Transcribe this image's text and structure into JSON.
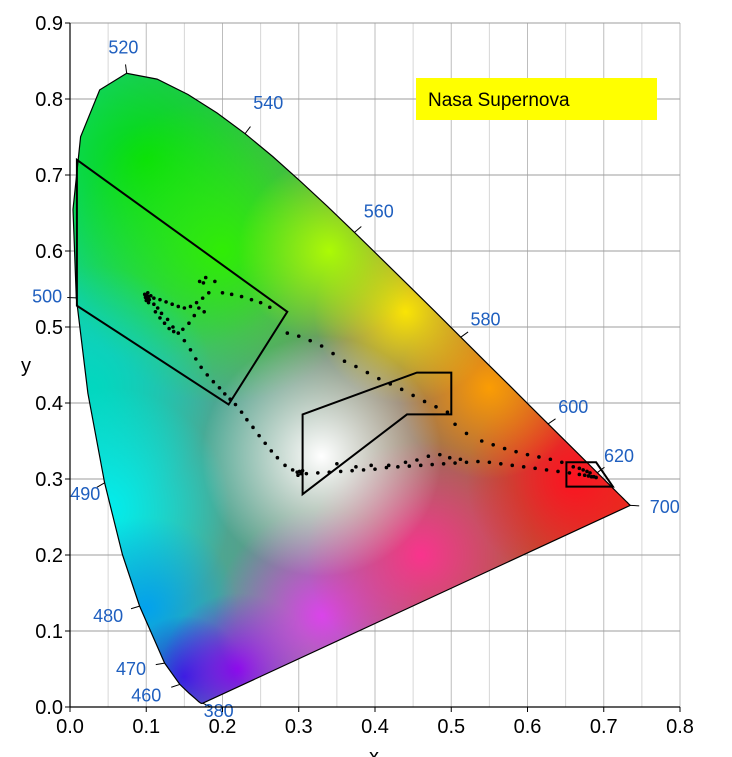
{
  "chart_data": {
    "type": "scatter",
    "title": "Nasa Supernova",
    "title_background": "#ffff00",
    "title_position": "top-right",
    "xlabel": "x",
    "ylabel": "y",
    "xlim": [
      0,
      0.8
    ],
    "ylim": [
      0,
      0.9
    ],
    "xticks": [
      "0.0",
      "0.1",
      "0.2",
      "0.3",
      "0.4",
      "0.5",
      "0.6",
      "0.7",
      "0.8"
    ],
    "yticks": [
      "0.0",
      "0.1",
      "0.2",
      "0.3",
      "0.4",
      "0.5",
      "0.6",
      "0.7",
      "0.8",
      "0.9"
    ],
    "grid": true,
    "wavelength_label_color": "#1f5fbf",
    "spectral_locus": [
      [
        0.1741,
        0.005
      ],
      [
        0.1733,
        0.0048
      ],
      [
        0.1726,
        0.0048
      ],
      [
        0.1714,
        0.0051
      ],
      [
        0.1689,
        0.0069
      ],
      [
        0.1644,
        0.0109
      ],
      [
        0.1566,
        0.0177
      ],
      [
        0.144,
        0.0297
      ],
      [
        0.1241,
        0.0578
      ],
      [
        0.0913,
        0.1327
      ],
      [
        0.0687,
        0.2007
      ],
      [
        0.0454,
        0.295
      ],
      [
        0.0235,
        0.4127
      ],
      [
        0.0082,
        0.5384
      ],
      [
        0.0039,
        0.6548
      ],
      [
        0.0139,
        0.7502
      ],
      [
        0.0389,
        0.812
      ],
      [
        0.0743,
        0.8338
      ],
      [
        0.1142,
        0.8262
      ],
      [
        0.1547,
        0.8059
      ],
      [
        0.1929,
        0.7816
      ],
      [
        0.2296,
        0.7543
      ],
      [
        0.2658,
        0.7243
      ],
      [
        0.3016,
        0.6923
      ],
      [
        0.3373,
        0.6589
      ],
      [
        0.3731,
        0.6245
      ],
      [
        0.4087,
        0.5896
      ],
      [
        0.4441,
        0.5547
      ],
      [
        0.4788,
        0.5202
      ],
      [
        0.5125,
        0.4866
      ],
      [
        0.5448,
        0.4544
      ],
      [
        0.5752,
        0.4242
      ],
      [
        0.6029,
        0.3965
      ],
      [
        0.627,
        0.3725
      ],
      [
        0.6482,
        0.3514
      ],
      [
        0.6658,
        0.334
      ],
      [
        0.6801,
        0.3197
      ],
      [
        0.6915,
        0.3083
      ],
      [
        0.7006,
        0.2993
      ],
      [
        0.7079,
        0.292
      ],
      [
        0.714,
        0.2859
      ],
      [
        0.719,
        0.2809
      ],
      [
        0.723,
        0.277
      ],
      [
        0.726,
        0.274
      ],
      [
        0.7283,
        0.2717
      ],
      [
        0.73,
        0.27
      ],
      [
        0.7311,
        0.2689
      ],
      [
        0.732,
        0.268
      ],
      [
        0.7327,
        0.2673
      ],
      [
        0.7334,
        0.2666
      ],
      [
        0.734,
        0.266
      ],
      [
        0.7344,
        0.2656
      ],
      [
        0.7347,
        0.2653
      ]
    ],
    "wavelength_labels": [
      {
        "label": "380",
        "x": 0.1741,
        "y": 0.005,
        "tx": 0.195,
        "ty": -0.005
      },
      {
        "label": "460",
        "x": 0.144,
        "y": 0.0297,
        "tx": 0.1,
        "ty": 0.015
      },
      {
        "label": "470",
        "x": 0.1241,
        "y": 0.0578,
        "tx": 0.08,
        "ty": 0.05
      },
      {
        "label": "480",
        "x": 0.0913,
        "y": 0.1327,
        "tx": 0.05,
        "ty": 0.12
      },
      {
        "label": "490",
        "x": 0.0454,
        "y": 0.295,
        "tx": 0.02,
        "ty": 0.28
      },
      {
        "label": "500",
        "x": 0.0082,
        "y": 0.5384,
        "tx": -0.03,
        "ty": 0.54
      },
      {
        "label": "520",
        "x": 0.0743,
        "y": 0.8338,
        "tx": 0.07,
        "ty": 0.868
      },
      {
        "label": "540",
        "x": 0.2296,
        "y": 0.7543,
        "tx": 0.26,
        "ty": 0.795
      },
      {
        "label": "560",
        "x": 0.3731,
        "y": 0.6245,
        "tx": 0.405,
        "ty": 0.652
      },
      {
        "label": "580",
        "x": 0.5125,
        "y": 0.4866,
        "tx": 0.545,
        "ty": 0.51
      },
      {
        "label": "600",
        "x": 0.627,
        "y": 0.3725,
        "tx": 0.66,
        "ty": 0.395
      },
      {
        "label": "620",
        "x": 0.6915,
        "y": 0.3083,
        "tx": 0.72,
        "ty": 0.33
      },
      {
        "label": "700",
        "x": 0.7347,
        "y": 0.2653,
        "tx": 0.78,
        "ty": 0.263
      }
    ],
    "regions": [
      {
        "name": "green",
        "points": [
          [
            0.009,
            0.72
          ],
          [
            0.285,
            0.52
          ],
          [
            0.208,
            0.398
          ],
          [
            0.009,
            0.528
          ]
        ]
      },
      {
        "name": "yellow",
        "points": [
          [
            0.305,
            0.385
          ],
          [
            0.455,
            0.44
          ],
          [
            0.5,
            0.44
          ],
          [
            0.5,
            0.385
          ],
          [
            0.442,
            0.385
          ],
          [
            0.305,
            0.28
          ]
        ]
      },
      {
        "name": "red",
        "points": [
          [
            0.651,
            0.322
          ],
          [
            0.69,
            0.322
          ],
          [
            0.712,
            0.29
          ],
          [
            0.651,
            0.29
          ]
        ]
      }
    ],
    "points": [
      [
        0.1,
        0.542
      ],
      [
        0.101,
        0.538
      ],
      [
        0.103,
        0.54
      ],
      [
        0.102,
        0.545
      ],
      [
        0.099,
        0.539
      ],
      [
        0.104,
        0.536
      ],
      [
        0.1,
        0.535
      ],
      [
        0.106,
        0.541
      ],
      [
        0.098,
        0.543
      ],
      [
        0.103,
        0.532
      ],
      [
        0.11,
        0.53
      ],
      [
        0.115,
        0.525
      ],
      [
        0.12,
        0.518
      ],
      [
        0.128,
        0.51
      ],
      [
        0.135,
        0.5
      ],
      [
        0.142,
        0.492
      ],
      [
        0.15,
        0.482
      ],
      [
        0.158,
        0.47
      ],
      [
        0.165,
        0.458
      ],
      [
        0.172,
        0.447
      ],
      [
        0.18,
        0.437
      ],
      [
        0.188,
        0.428
      ],
      [
        0.196,
        0.42
      ],
      [
        0.203,
        0.412
      ],
      [
        0.21,
        0.405
      ],
      [
        0.217,
        0.398
      ],
      [
        0.225,
        0.388
      ],
      [
        0.232,
        0.378
      ],
      [
        0.24,
        0.368
      ],
      [
        0.248,
        0.357
      ],
      [
        0.256,
        0.347
      ],
      [
        0.264,
        0.337
      ],
      [
        0.272,
        0.328
      ],
      [
        0.282,
        0.318
      ],
      [
        0.292,
        0.312
      ],
      [
        0.298,
        0.309
      ],
      [
        0.301,
        0.31
      ],
      [
        0.303,
        0.307
      ],
      [
        0.299,
        0.305
      ],
      [
        0.305,
        0.311
      ],
      [
        0.11,
        0.538
      ],
      [
        0.118,
        0.536
      ],
      [
        0.126,
        0.533
      ],
      [
        0.134,
        0.53
      ],
      [
        0.142,
        0.527
      ],
      [
        0.15,
        0.525
      ],
      [
        0.158,
        0.527
      ],
      [
        0.166,
        0.532
      ],
      [
        0.174,
        0.538
      ],
      [
        0.182,
        0.545
      ],
      [
        0.175,
        0.558
      ],
      [
        0.178,
        0.565
      ],
      [
        0.17,
        0.56
      ],
      [
        0.19,
        0.56
      ],
      [
        0.2,
        0.545
      ],
      [
        0.212,
        0.543
      ],
      [
        0.225,
        0.54
      ],
      [
        0.238,
        0.536
      ],
      [
        0.25,
        0.532
      ],
      [
        0.262,
        0.526
      ],
      [
        0.112,
        0.52
      ],
      [
        0.118,
        0.512
      ],
      [
        0.124,
        0.505
      ],
      [
        0.13,
        0.498
      ],
      [
        0.136,
        0.494
      ],
      [
        0.148,
        0.497
      ],
      [
        0.156,
        0.505
      ],
      [
        0.163,
        0.515
      ],
      [
        0.169,
        0.525
      ],
      [
        0.176,
        0.52
      ],
      [
        0.285,
        0.492
      ],
      [
        0.3,
        0.488
      ],
      [
        0.315,
        0.482
      ],
      [
        0.33,
        0.475
      ],
      [
        0.345,
        0.465
      ],
      [
        0.36,
        0.455
      ],
      [
        0.375,
        0.448
      ],
      [
        0.39,
        0.44
      ],
      [
        0.405,
        0.432
      ],
      [
        0.42,
        0.425
      ],
      [
        0.435,
        0.418
      ],
      [
        0.45,
        0.41
      ],
      [
        0.465,
        0.402
      ],
      [
        0.48,
        0.395
      ],
      [
        0.495,
        0.388
      ],
      [
        0.31,
        0.307
      ],
      [
        0.325,
        0.308
      ],
      [
        0.34,
        0.309
      ],
      [
        0.355,
        0.31
      ],
      [
        0.37,
        0.311
      ],
      [
        0.385,
        0.312
      ],
      [
        0.4,
        0.313
      ],
      [
        0.415,
        0.315
      ],
      [
        0.43,
        0.316
      ],
      [
        0.445,
        0.317
      ],
      [
        0.46,
        0.318
      ],
      [
        0.475,
        0.319
      ],
      [
        0.49,
        0.32
      ],
      [
        0.505,
        0.321
      ],
      [
        0.52,
        0.322
      ],
      [
        0.535,
        0.323
      ],
      [
        0.55,
        0.322
      ],
      [
        0.565,
        0.32
      ],
      [
        0.58,
        0.318
      ],
      [
        0.595,
        0.316
      ],
      [
        0.61,
        0.314
      ],
      [
        0.625,
        0.312
      ],
      [
        0.64,
        0.31
      ],
      [
        0.655,
        0.308
      ],
      [
        0.668,
        0.306
      ],
      [
        0.675,
        0.305
      ],
      [
        0.68,
        0.304
      ],
      [
        0.684,
        0.303
      ],
      [
        0.687,
        0.303
      ],
      [
        0.69,
        0.302
      ],
      [
        0.66,
        0.316
      ],
      [
        0.668,
        0.314
      ],
      [
        0.673,
        0.312
      ],
      [
        0.678,
        0.31
      ],
      [
        0.682,
        0.308
      ],
      [
        0.54,
        0.35
      ],
      [
        0.555,
        0.345
      ],
      [
        0.57,
        0.34
      ],
      [
        0.585,
        0.336
      ],
      [
        0.6,
        0.332
      ],
      [
        0.615,
        0.329
      ],
      [
        0.63,
        0.326
      ],
      [
        0.645,
        0.322
      ],
      [
        0.52,
        0.36
      ],
      [
        0.505,
        0.372
      ],
      [
        0.35,
        0.32
      ],
      [
        0.375,
        0.316
      ],
      [
        0.395,
        0.318
      ],
      [
        0.418,
        0.318
      ],
      [
        0.44,
        0.322
      ],
      [
        0.455,
        0.325
      ],
      [
        0.47,
        0.33
      ],
      [
        0.485,
        0.332
      ],
      [
        0.498,
        0.328
      ],
      [
        0.512,
        0.326
      ]
    ]
  }
}
